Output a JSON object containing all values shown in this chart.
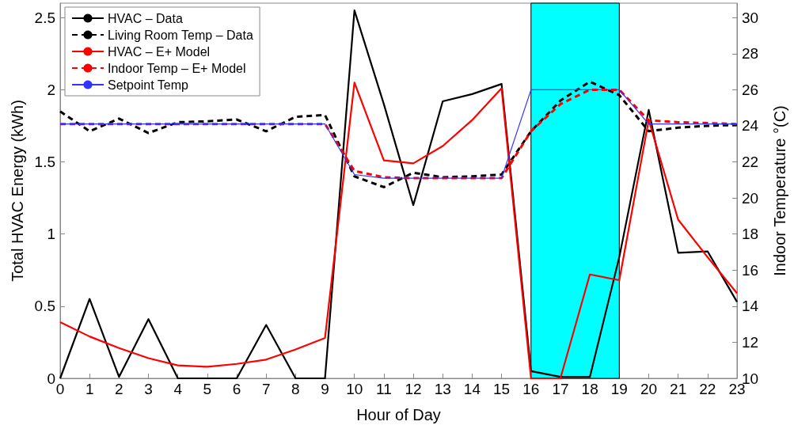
{
  "chart_data": {
    "type": "line",
    "xlabel": "Hour of Day",
    "ylabel": "Total HVAC Energy (kWh)",
    "y2label": "Indoor Temperature °(C)",
    "x": [
      0,
      1,
      2,
      3,
      4,
      5,
      6,
      7,
      8,
      9,
      10,
      11,
      12,
      13,
      14,
      15,
      16,
      17,
      18,
      19,
      20,
      21,
      22,
      23
    ],
    "xlim": [
      0,
      23
    ],
    "xticks": [
      0,
      1,
      2,
      3,
      4,
      5,
      6,
      7,
      8,
      9,
      10,
      11,
      12,
      13,
      14,
      15,
      16,
      17,
      18,
      19,
      20,
      21,
      22,
      23
    ],
    "ylim": [
      0,
      2.6
    ],
    "yticks": [
      0,
      0.5,
      1,
      1.5,
      2,
      2.5
    ],
    "y2lim": [
      10,
      30.8
    ],
    "y2ticks": [
      10,
      12,
      14,
      16,
      18,
      20,
      22,
      24,
      26,
      28,
      30
    ],
    "grid": false,
    "legend": "top left",
    "marker": "none",
    "bands": [
      {
        "axis": "x",
        "from": 16,
        "to": 19,
        "color": "#00ffff"
      }
    ],
    "series": [
      {
        "name": "HVAC – Data",
        "color": "#000000",
        "line_style": "solid",
        "values": [
          0,
          0.55,
          0.01,
          0.41,
          0,
          0,
          0,
          0.37,
          0,
          0,
          2.55,
          1.9,
          1.2,
          1.92,
          1.97,
          2.04,
          0.05,
          0.01,
          0.01,
          0.84,
          1.86,
          0.87,
          0.88,
          0.53
        ]
      },
      {
        "name": "Living Room Temp – Data",
        "color": "#000000",
        "line_style": "dashed",
        "axis": "y2",
        "values": [
          24.8,
          23.7,
          24.4,
          23.6,
          24.2,
          24.25,
          24.35,
          23.7,
          24.5,
          24.6,
          21.2,
          20.6,
          21.4,
          21.15,
          21.2,
          21.3,
          23.7,
          25.4,
          26.45,
          25.7,
          23.7,
          23.9,
          24,
          24.05
        ]
      },
      {
        "name": "HVAC – E+ Model",
        "color": "#ff0000",
        "line_style": "solid",
        "values": [
          0.39,
          0.29,
          0.21,
          0.14,
          0.09,
          0.08,
          0.1,
          0.13,
          0.2,
          0.28,
          2.05,
          1.51,
          1.49,
          1.61,
          1.79,
          2.01,
          0,
          0,
          0.72,
          0.68,
          1.79,
          1.1,
          0.84,
          0.59
        ]
      },
      {
        "name": "Indoor Temp – E+ Model",
        "color": "#ff0000",
        "line_style": "dashed",
        "axis": "y2",
        "values": [
          24.1,
          24.1,
          24.1,
          24.1,
          24.1,
          24.1,
          24.1,
          24.1,
          24.1,
          24.1,
          21.5,
          21.15,
          21.1,
          21.1,
          21.1,
          21.1,
          23.7,
          25.2,
          26,
          26,
          24.3,
          24.2,
          24.15,
          24.1
        ]
      },
      {
        "name": "Setpoint Temp",
        "color": "#3333ff",
        "line_style": "solid",
        "axis": "y2",
        "values": [
          24.1,
          24.1,
          24.1,
          24.1,
          24.1,
          24.1,
          24.1,
          24.1,
          24.1,
          24.1,
          21.3,
          21.1,
          21.1,
          21.1,
          21.1,
          21.1,
          26,
          26,
          26,
          26,
          24.1,
          24.1,
          24.1,
          24.1
        ]
      }
    ]
  }
}
